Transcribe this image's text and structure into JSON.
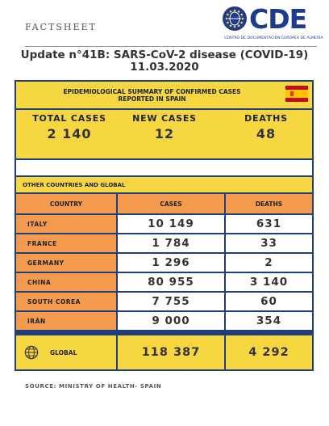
{
  "header": {
    "factsheet_label": "FACTSHEET",
    "logo_text": "CDE",
    "logo_subtitle": "CENTRO DE DOCUMENTACIÓN EUROPEA DE ALMERÍA",
    "title_line1": "Update n°41B: SARS-CoV-2 disease (COVID-19)",
    "title_line2": "11.03.2020"
  },
  "summary": {
    "title_line1": "EPIDEMIOLOGICAL SUMMARY OF CONFIRMED CASES",
    "title_line2": "REPORTED IN SPAIN",
    "flag_icon": "spain-flag-icon",
    "stats": [
      {
        "label": "TOTAL CASES",
        "value": "2 140"
      },
      {
        "label": "NEW CASES",
        "value": "12"
      },
      {
        "label": "DEATHS",
        "value": "48"
      }
    ]
  },
  "other": {
    "section_title": "OTHER COUNTRIES AND GLOBAL",
    "columns": [
      "COUNTRY",
      "CASES",
      "DEATHS"
    ],
    "rows": [
      {
        "country": "ITALY",
        "cases": "10 149",
        "deaths": "631"
      },
      {
        "country": "FRANCE",
        "cases": "1 784",
        "deaths": "33"
      },
      {
        "country": "GERMANY",
        "cases": "1 296",
        "deaths": "2"
      },
      {
        "country": "CHINA",
        "cases": "80 955",
        "deaths": "3 140"
      },
      {
        "country": "SOUTH COREA",
        "cases": "7 755",
        "deaths": "60"
      },
      {
        "country": "IRÁN",
        "cases": "9 000",
        "deaths": "354"
      }
    ],
    "global": {
      "label": "GLOBAL",
      "cases": "118 387",
      "deaths": "4 292",
      "icon": "globe-icon"
    }
  },
  "footer": {
    "source": "SOURCE: MINISTRY OF HEALTH- SPAIN"
  },
  "colors": {
    "frame": "#1f3f7a",
    "yellow": "#f6d742",
    "orange": "#f39a4d",
    "logo": "#1f3c8c"
  }
}
